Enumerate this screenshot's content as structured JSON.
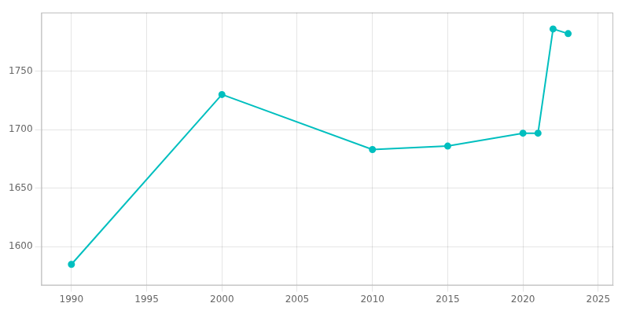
{
  "chart_data": {
    "type": "line",
    "x": [
      1990,
      2000,
      2010,
      2015,
      2020,
      2021,
      2022,
      2023
    ],
    "values": [
      1585,
      1730,
      1683,
      1686,
      1697,
      1697,
      1786,
      1782
    ],
    "color": "#00BFBF",
    "marker": "circle",
    "xlim": [
      1988,
      2026
    ],
    "ylim": [
      1567,
      1800
    ],
    "xticks": [
      1990,
      1995,
      2000,
      2005,
      2010,
      2015,
      2020,
      2025
    ],
    "yticks": [
      1600,
      1650,
      1700,
      1750
    ],
    "grid": true
  }
}
